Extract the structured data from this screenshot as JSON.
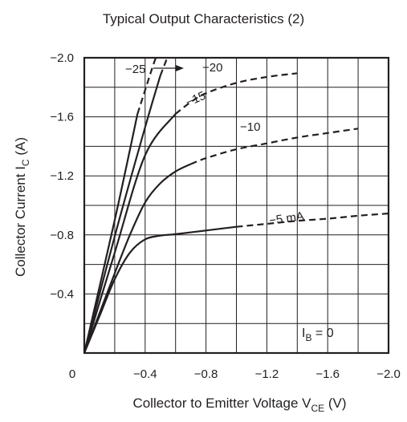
{
  "chart_data": {
    "type": "line",
    "title": "Typical Output Characteristics (2)",
    "xlabel": {
      "main": "Collector to Emitter Voltage  V",
      "sub": "CE",
      "unit": "  (V)"
    },
    "ylabel": {
      "main": "Collector Current  I",
      "sub": "C",
      "unit": "  (A)"
    },
    "xlim": [
      0,
      -2.0
    ],
    "ylim": [
      0,
      -2.0
    ],
    "grid": true,
    "x_ticks": [
      {
        "value": 0,
        "label": "0"
      },
      {
        "value": -0.4,
        "label": "−0.4"
      },
      {
        "value": -0.8,
        "label": "−0.8"
      },
      {
        "value": -1.2,
        "label": "−1.2"
      },
      {
        "value": -1.6,
        "label": "−1.6"
      },
      {
        "value": -2.0,
        "label": "−2.0"
      }
    ],
    "y_ticks": [
      {
        "value": -0.4,
        "label": "−0.4"
      },
      {
        "value": -0.8,
        "label": "−0.8"
      },
      {
        "value": -1.2,
        "label": "−1.2"
      },
      {
        "value": -1.6,
        "label": "−1.6"
      },
      {
        "value": -2.0,
        "label": "−2.0"
      }
    ],
    "ib_annotation": {
      "main": "I",
      "sub": "B",
      "rest": " = 0"
    },
    "series": [
      {
        "label": "−5 mA",
        "solid": [
          [
            0,
            0
          ],
          [
            -0.1,
            -0.25
          ],
          [
            -0.2,
            -0.5
          ],
          [
            -0.3,
            -0.68
          ],
          [
            -0.4,
            -0.77
          ],
          [
            -0.5,
            -0.795
          ],
          [
            -0.6,
            -0.805
          ],
          [
            -0.8,
            -0.83
          ],
          [
            -1.0,
            -0.855
          ]
        ],
        "dashed": [
          [
            -1.0,
            -0.855
          ],
          [
            -1.2,
            -0.875
          ],
          [
            -1.4,
            -0.895
          ],
          [
            -1.6,
            -0.91
          ],
          [
            -1.8,
            -0.93
          ],
          [
            -2.0,
            -0.945
          ]
        ]
      },
      {
        "label": "−10",
        "solid": [
          [
            0,
            0
          ],
          [
            -0.1,
            -0.27
          ],
          [
            -0.2,
            -0.54
          ],
          [
            -0.3,
            -0.8
          ],
          [
            -0.4,
            -1.02
          ],
          [
            -0.5,
            -1.15
          ],
          [
            -0.6,
            -1.23
          ],
          [
            -0.7,
            -1.28
          ]
        ],
        "dashed": [
          [
            -0.7,
            -1.28
          ],
          [
            -0.8,
            -1.32
          ],
          [
            -1.0,
            -1.38
          ],
          [
            -1.2,
            -1.42
          ],
          [
            -1.4,
            -1.46
          ],
          [
            -1.6,
            -1.49
          ],
          [
            -1.8,
            -1.52
          ]
        ]
      },
      {
        "label": "−15",
        "solid": [
          [
            0,
            0
          ],
          [
            -0.2,
            -0.68
          ],
          [
            -0.4,
            -1.34
          ],
          [
            -0.6,
            -1.62
          ]
        ],
        "dashed": [
          [
            -0.6,
            -1.62
          ],
          [
            -0.7,
            -1.7
          ],
          [
            -0.8,
            -1.76
          ],
          [
            -1.0,
            -1.83
          ],
          [
            -1.2,
            -1.87
          ],
          [
            -1.4,
            -1.895
          ]
        ]
      },
      {
        "label": "−20",
        "solid": [
          [
            0,
            0
          ],
          [
            -0.2,
            -0.79
          ],
          [
            -0.4,
            -1.53
          ],
          [
            -0.5,
            -1.88
          ]
        ],
        "dashed": [
          [
            -0.5,
            -1.88
          ],
          [
            -0.545,
            -2.0
          ]
        ]
      },
      {
        "label": "−25",
        "solid": [
          [
            0,
            0
          ],
          [
            -0.2,
            -0.9
          ],
          [
            -0.35,
            -1.62
          ]
        ],
        "dashed": [
          [
            -0.35,
            -1.62
          ],
          [
            -0.44,
            -1.91
          ],
          [
            -0.47,
            -2.0
          ]
        ]
      }
    ],
    "curve_labels": [
      "−25",
      "−20",
      "−15",
      "−10",
      "−5 mA"
    ]
  }
}
